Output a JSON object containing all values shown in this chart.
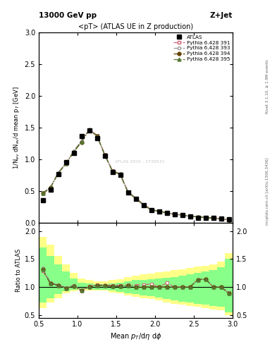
{
  "title_top_left": "13000 GeV pp",
  "title_top_right": "Z+Jet",
  "plot_title": "<pT> (ATLAS UE in Z production)",
  "xlabel": "Mean $p_T$/d$\\eta$ d$\\phi$",
  "ylabel_main": "1/N$_{ev}$ dN$_{ev}$/d mean p$_T$ [GeV]",
  "ylabel_ratio": "Ratio to ATLAS",
  "right_label_top": "Rivet 3.1.10, ≥ 1.9M events",
  "right_label_bottom": "mcplots.cern.ch [arXiv:1306.3436]",
  "watermark": "ATLAS 2015 - 1736531",
  "main_xlim": [
    0.5,
    3.0
  ],
  "main_ylim": [
    0.0,
    3.0
  ],
  "ratio_ylim": [
    0.45,
    2.15
  ],
  "atlas_x": [
    0.55,
    0.65,
    0.75,
    0.85,
    0.95,
    1.05,
    1.15,
    1.25,
    1.35,
    1.45,
    1.55,
    1.65,
    1.75,
    1.85,
    1.95,
    2.05,
    2.15,
    2.25,
    2.35,
    2.45,
    2.55,
    2.65,
    2.75,
    2.85,
    2.95
  ],
  "atlas_y": [
    0.35,
    0.52,
    0.76,
    0.95,
    1.1,
    1.36,
    1.46,
    1.33,
    1.05,
    0.8,
    0.75,
    0.47,
    0.38,
    0.28,
    0.2,
    0.18,
    0.15,
    0.13,
    0.12,
    0.1,
    0.08,
    0.07,
    0.07,
    0.06,
    0.05
  ],
  "atlas_yerr": [
    0.015,
    0.02,
    0.025,
    0.03,
    0.03,
    0.035,
    0.035,
    0.03,
    0.025,
    0.02,
    0.02,
    0.015,
    0.015,
    0.01,
    0.01,
    0.01,
    0.008,
    0.008,
    0.008,
    0.007,
    0.007,
    0.006,
    0.006,
    0.006,
    0.005
  ],
  "py391_x": [
    0.55,
    0.65,
    0.75,
    0.85,
    0.95,
    1.05,
    1.15,
    1.25,
    1.35,
    1.45,
    1.55,
    1.65,
    1.75,
    1.85,
    1.95,
    2.05,
    2.15,
    2.25,
    2.35,
    2.45,
    2.55,
    2.65,
    2.75,
    2.85,
    2.95
  ],
  "py391_y": [
    0.45,
    0.55,
    0.78,
    0.93,
    1.12,
    1.28,
    1.47,
    1.38,
    1.08,
    0.82,
    0.77,
    0.49,
    0.39,
    0.29,
    0.21,
    0.18,
    0.16,
    0.13,
    0.12,
    0.1,
    0.09,
    0.08,
    0.07,
    0.06,
    0.045
  ],
  "py393_x": [
    0.55,
    0.65,
    0.75,
    0.85,
    0.95,
    1.05,
    1.15,
    1.25,
    1.35,
    1.45,
    1.55,
    1.65,
    1.75,
    1.85,
    1.95,
    2.05,
    2.15,
    2.25,
    2.35,
    2.45,
    2.55,
    2.65,
    2.75,
    2.85,
    2.95
  ],
  "py393_y": [
    0.47,
    0.56,
    0.79,
    0.94,
    1.13,
    1.29,
    1.46,
    1.37,
    1.07,
    0.81,
    0.76,
    0.48,
    0.38,
    0.28,
    0.2,
    0.18,
    0.15,
    0.13,
    0.12,
    0.1,
    0.09,
    0.08,
    0.07,
    0.06,
    0.045
  ],
  "py394_x": [
    0.55,
    0.65,
    0.75,
    0.85,
    0.95,
    1.05,
    1.15,
    1.25,
    1.35,
    1.45,
    1.55,
    1.65,
    1.75,
    1.85,
    1.95,
    2.05,
    2.15,
    2.25,
    2.35,
    2.45,
    2.55,
    2.65,
    2.75,
    2.85,
    2.95
  ],
  "py394_y": [
    0.46,
    0.55,
    0.78,
    0.93,
    1.11,
    1.27,
    1.46,
    1.37,
    1.07,
    0.81,
    0.76,
    0.48,
    0.38,
    0.28,
    0.2,
    0.18,
    0.15,
    0.13,
    0.12,
    0.1,
    0.09,
    0.08,
    0.07,
    0.06,
    0.044
  ],
  "py395_x": [
    0.55,
    0.65,
    0.75,
    0.85,
    0.95,
    1.05,
    1.15,
    1.25,
    1.35,
    1.45,
    1.55,
    1.65,
    1.75,
    1.85,
    1.95,
    2.05,
    2.15,
    2.25,
    2.35,
    2.45,
    2.55,
    2.65,
    2.75,
    2.85,
    2.95
  ],
  "py395_y": [
    0.46,
    0.55,
    0.78,
    0.93,
    1.12,
    1.28,
    1.46,
    1.37,
    1.07,
    0.81,
    0.76,
    0.48,
    0.38,
    0.28,
    0.2,
    0.18,
    0.15,
    0.13,
    0.12,
    0.1,
    0.09,
    0.08,
    0.07,
    0.06,
    0.044
  ],
  "color_391": "#cc6677",
  "color_393": "#999999",
  "color_394": "#664400",
  "color_395": "#557733",
  "atlas_color": "black",
  "band_yellow": "#ffff88",
  "band_green": "#88ff88",
  "ratio_391": [
    1.29,
    1.06,
    1.03,
    0.98,
    1.02,
    0.94,
    1.01,
    1.04,
    1.03,
    1.03,
    1.03,
    1.04,
    1.03,
    1.04,
    1.05,
    1.0,
    1.07,
    1.0,
    1.0,
    1.0,
    1.13,
    1.14,
    1.0,
    1.0,
    0.9
  ],
  "ratio_393": [
    1.34,
    1.08,
    1.04,
    0.99,
    1.03,
    0.95,
    1.0,
    1.03,
    1.02,
    1.01,
    1.01,
    1.02,
    1.0,
    1.0,
    1.0,
    1.0,
    1.0,
    1.0,
    1.0,
    1.0,
    1.13,
    1.14,
    1.0,
    1.0,
    0.9
  ],
  "ratio_394": [
    1.31,
    1.06,
    1.03,
    0.98,
    1.01,
    0.93,
    1.0,
    1.03,
    1.02,
    1.01,
    1.01,
    1.02,
    1.0,
    1.0,
    1.0,
    1.0,
    1.0,
    1.0,
    1.0,
    1.0,
    1.13,
    1.14,
    1.0,
    1.0,
    0.88
  ],
  "ratio_395": [
    1.31,
    1.06,
    1.03,
    0.98,
    1.02,
    0.94,
    1.0,
    1.03,
    1.02,
    1.01,
    1.01,
    1.02,
    1.0,
    1.0,
    1.0,
    1.0,
    1.0,
    1.0,
    1.0,
    1.0,
    1.13,
    1.14,
    1.0,
    1.0,
    0.88
  ],
  "band_x_edges": [
    0.5,
    0.6,
    0.7,
    0.8,
    0.9,
    1.0,
    1.1,
    1.2,
    1.3,
    1.4,
    1.5,
    1.6,
    1.7,
    1.8,
    1.9,
    2.0,
    2.1,
    2.2,
    2.3,
    2.4,
    2.5,
    2.6,
    2.7,
    2.8,
    2.9,
    3.0
  ],
  "band_yellow_lo": [
    0.62,
    0.72,
    0.8,
    0.88,
    0.92,
    0.95,
    0.94,
    0.93,
    0.93,
    0.9,
    0.88,
    0.85,
    0.82,
    0.8,
    0.78,
    0.76,
    0.72,
    0.7,
    0.68,
    0.66,
    0.64,
    0.62,
    0.6,
    0.58,
    0.5
  ],
  "band_yellow_hi": [
    1.9,
    1.75,
    1.55,
    1.4,
    1.25,
    1.15,
    1.12,
    1.1,
    1.1,
    1.12,
    1.14,
    1.18,
    1.2,
    1.22,
    1.24,
    1.26,
    1.28,
    1.3,
    1.32,
    1.34,
    1.36,
    1.38,
    1.4,
    1.45,
    1.6
  ],
  "band_green_lo": [
    0.72,
    0.8,
    0.87,
    0.92,
    0.95,
    0.97,
    0.96,
    0.95,
    0.95,
    0.93,
    0.91,
    0.89,
    0.87,
    0.85,
    0.83,
    0.81,
    0.78,
    0.76,
    0.74,
    0.72,
    0.7,
    0.68,
    0.66,
    0.64,
    0.55
  ],
  "band_green_hi": [
    1.7,
    1.55,
    1.4,
    1.28,
    1.15,
    1.08,
    1.06,
    1.05,
    1.05,
    1.06,
    1.08,
    1.1,
    1.12,
    1.13,
    1.14,
    1.15,
    1.16,
    1.18,
    1.2,
    1.22,
    1.25,
    1.28,
    1.3,
    1.35,
    1.5
  ]
}
